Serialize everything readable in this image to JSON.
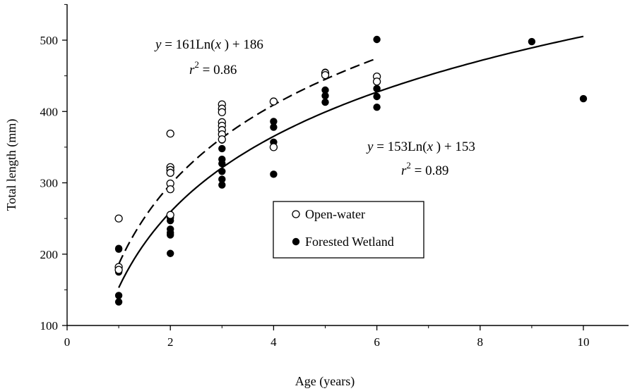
{
  "chart_data": {
    "type": "scatter",
    "title": "",
    "xlabel": "Age (years)",
    "ylabel": "Total length (mm)",
    "xlim": [
      0,
      11
    ],
    "ylim": [
      100,
      550
    ],
    "xticks": [
      0,
      2,
      4,
      6,
      8,
      10
    ],
    "xtick_labels": [
      "0",
      "2",
      "4",
      "6",
      "8",
      "10"
    ],
    "yticks": [
      100,
      200,
      300,
      400,
      500
    ],
    "ytick_labels": [
      "100",
      "200",
      "300",
      "400",
      "500"
    ],
    "grid": false,
    "legend": {
      "placement": "center",
      "entries": [
        "Open-water",
        "Forested Wetland"
      ]
    },
    "series": [
      {
        "name": "Open-water",
        "marker": "open-circle",
        "color": "#000000",
        "points": [
          [
            1,
            250
          ],
          [
            1,
            182
          ],
          [
            1,
            178
          ],
          [
            2,
            369
          ],
          [
            2,
            322
          ],
          [
            2,
            318
          ],
          [
            2,
            314
          ],
          [
            2,
            299
          ],
          [
            2,
            291
          ],
          [
            2,
            255
          ],
          [
            3,
            410
          ],
          [
            3,
            404
          ],
          [
            3,
            399
          ],
          [
            3,
            385
          ],
          [
            3,
            380
          ],
          [
            3,
            374
          ],
          [
            3,
            368
          ],
          [
            3,
            361
          ],
          [
            4,
            414
          ],
          [
            4,
            350
          ],
          [
            5,
            454
          ],
          [
            5,
            451
          ],
          [
            6,
            449
          ],
          [
            6,
            442
          ]
        ]
      },
      {
        "name": "Forested Wetland",
        "marker": "filled-circle",
        "color": "#000000",
        "points": [
          [
            1,
            208
          ],
          [
            1,
            207
          ],
          [
            1,
            175
          ],
          [
            1,
            142
          ],
          [
            1,
            133
          ],
          [
            2,
            251
          ],
          [
            2,
            247
          ],
          [
            2,
            235
          ],
          [
            2,
            230
          ],
          [
            2,
            227
          ],
          [
            2,
            201
          ],
          [
            3,
            360
          ],
          [
            3,
            348
          ],
          [
            3,
            333
          ],
          [
            3,
            327
          ],
          [
            3,
            316
          ],
          [
            3,
            305
          ],
          [
            3,
            297
          ],
          [
            4,
            386
          ],
          [
            4,
            378
          ],
          [
            4,
            357
          ],
          [
            4,
            312
          ],
          [
            5,
            455
          ],
          [
            5,
            430
          ],
          [
            5,
            422
          ],
          [
            5,
            413
          ],
          [
            6,
            501
          ],
          [
            6,
            432
          ],
          [
            6,
            421
          ],
          [
            6,
            406
          ],
          [
            9,
            498
          ],
          [
            10,
            418
          ]
        ]
      }
    ],
    "fits": [
      {
        "series": "Open-water",
        "style": "dashed",
        "a": 161,
        "b": 186,
        "x_range": [
          1,
          6
        ],
        "equation": {
          "y": "y",
          "eq": " = 161Ln(",
          "x": "x",
          "tail": " ) + 186"
        },
        "r2": {
          "r": "r",
          "sup": "2",
          "val": " = 0.86"
        }
      },
      {
        "series": "Forested Wetland",
        "style": "solid",
        "a": 153,
        "b": 153,
        "x_range": [
          1,
          10
        ],
        "equation": {
          "y": "y",
          "eq": " = 153Ln(",
          "x": "x",
          "tail": " ) + 153"
        },
        "r2": {
          "r": "r",
          "sup": "2",
          "val": " = 0.89"
        }
      }
    ]
  }
}
